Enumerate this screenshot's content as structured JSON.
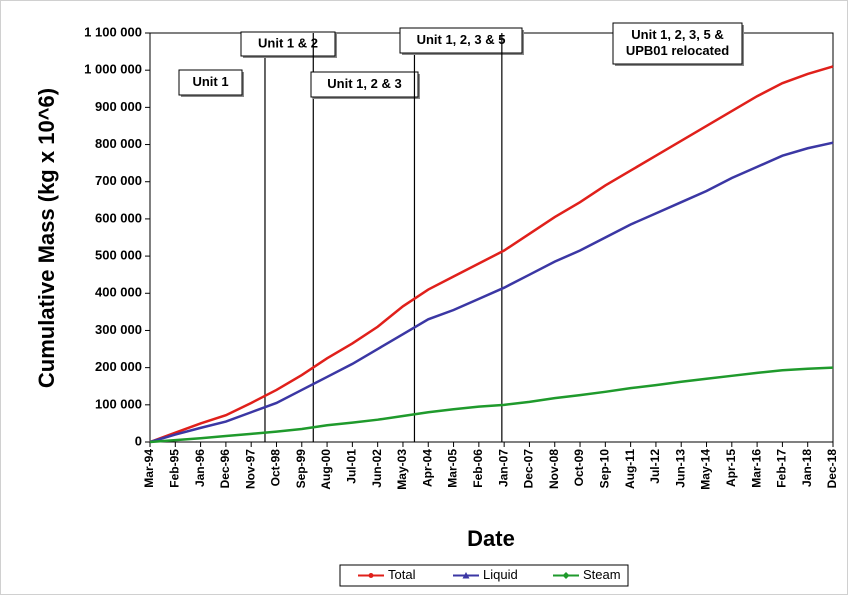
{
  "chart_data": {
    "type": "line",
    "y_axis_label": "Cumulative Mass (kg x 10^6)",
    "x_axis_label": "Date",
    "categories": [
      "Mar-94",
      "Feb-95",
      "Jan-96",
      "Dec-96",
      "Nov-97",
      "Oct-98",
      "Sep-99",
      "Aug-00",
      "Jul-01",
      "Jun-02",
      "May-03",
      "Apr-04",
      "Mar-05",
      "Feb-06",
      "Jan-07",
      "Dec-07",
      "Nov-08",
      "Oct-09",
      "Sep-10",
      "Aug-11",
      "Jul-12",
      "Jun-13",
      "May-14",
      "Apr-15",
      "Mar-16",
      "Feb-17",
      "Jan-18",
      "Dec-18"
    ],
    "series": [
      {
        "name": "Total",
        "color": "#e0201b",
        "marker": "circle",
        "values": [
          0,
          25000,
          50000,
          72000,
          105000,
          140000,
          180000,
          225000,
          265000,
          310000,
          365000,
          410000,
          445000,
          480000,
          515000,
          560000,
          605000,
          645000,
          690000,
          730000,
          770000,
          810000,
          850000,
          890000,
          930000,
          965000,
          990000,
          1010000
        ]
      },
      {
        "name": "Liquid",
        "color": "#3b37a4",
        "marker": "triangle",
        "values": [
          0,
          20000,
          38000,
          55000,
          80000,
          105000,
          140000,
          175000,
          210000,
          250000,
          290000,
          330000,
          355000,
          385000,
          415000,
          450000,
          485000,
          515000,
          550000,
          585000,
          615000,
          645000,
          675000,
          710000,
          740000,
          770000,
          790000,
          805000
        ]
      },
      {
        "name": "Steam",
        "color": "#1f9a2c",
        "marker": "diamond",
        "values": [
          0,
          5000,
          10000,
          16000,
          22000,
          28000,
          35000,
          45000,
          52000,
          60000,
          70000,
          80000,
          88000,
          95000,
          100000,
          108000,
          118000,
          126000,
          135000,
          145000,
          153000,
          162000,
          170000,
          178000,
          186000,
          193000,
          197000,
          200000
        ]
      }
    ],
    "ylim": [
      0,
      1100000
    ],
    "yticks": [
      0,
      {
        "value": 100000,
        "label": "100 000"
      },
      {
        "value": 200000,
        "label": "200 000"
      },
      {
        "value": 300000,
        "label": "300 000"
      },
      {
        "value": 400000,
        "label": "400 000"
      },
      {
        "value": 500000,
        "label": "500 000"
      },
      {
        "value": 600000,
        "label": "600 000"
      },
      {
        "value": 700000,
        "label": "700 000"
      },
      {
        "value": 800000,
        "label": "800 000"
      },
      {
        "value": 900000,
        "label": "900 000"
      },
      {
        "value": 1000000,
        "label": "1 000 000"
      },
      {
        "value": 1100000,
        "label": "1 100 000"
      }
    ],
    "grid": false,
    "legend": "bottom",
    "annotations": [
      {
        "lines": [
          "Unit 1"
        ]
      },
      {
        "lines": [
          "Unit 1 & 2"
        ],
        "x": "May-98"
      },
      {
        "lines": [
          "Unit 1, 2 & 3"
        ],
        "x": "Feb-00"
      },
      {
        "lines": [
          "Unit 1, 2, 3 & 5"
        ],
        "x": "Oct-03"
      },
      {
        "lines": [
          "Unit 1, 2, 3, 5 &",
          "UPB01 relocated"
        ],
        "x": "Dec-06"
      }
    ]
  }
}
